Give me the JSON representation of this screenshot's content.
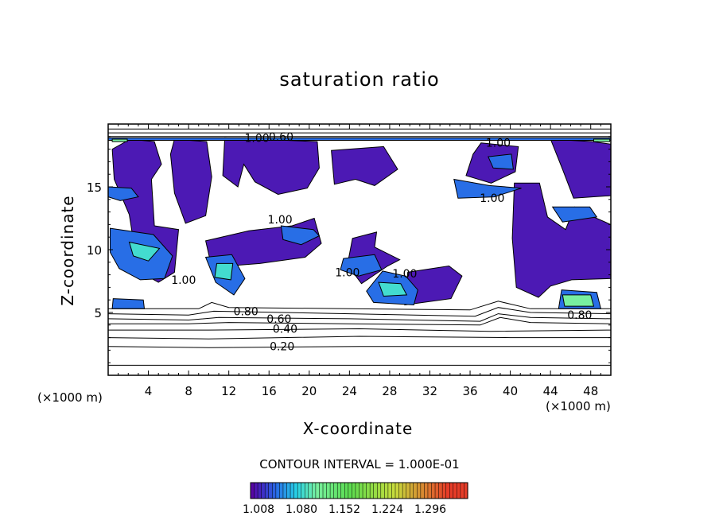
{
  "chart_data": {
    "type": "heatmap",
    "title": "saturation ratio",
    "xlabel": "X-coordinate",
    "ylabel": "Z-coordinate",
    "x_unit": "(×1000 m)",
    "y_unit": "(×1000 m)",
    "xlim": [
      0,
      50
    ],
    "ylim": [
      0,
      20
    ],
    "x_ticks": [
      4,
      8,
      12,
      16,
      20,
      24,
      28,
      32,
      36,
      40,
      44,
      48
    ],
    "y_ticks": [
      5,
      10,
      15
    ],
    "contour_interval_text": "CONTOUR INTERVAL = 1.000E-01",
    "contour_labels": [
      {
        "text": "0.20",
        "x": 17.3,
        "y": 2.3
      },
      {
        "text": "0.40",
        "x": 17.6,
        "y": 3.7
      },
      {
        "text": "0.60",
        "x": 17.0,
        "y": 4.5
      },
      {
        "text": "0.80",
        "x": 13.7,
        "y": 5.1
      },
      {
        "text": "0.80",
        "x": 46.9,
        "y": 4.8
      },
      {
        "text": "0.60",
        "x": 17.2,
        "y": 19.0
      },
      {
        "text": "1.00",
        "x": 14.8,
        "y": 18.9
      },
      {
        "text": "1.00",
        "x": 29.5,
        "y": 8.1
      },
      {
        "text": "1.00",
        "x": 23.8,
        "y": 8.2
      },
      {
        "text": "1.00",
        "x": 17.1,
        "y": 12.4
      },
      {
        "text": "1.00",
        "x": 38.2,
        "y": 14.1
      },
      {
        "text": "1.00",
        "x": 7.5,
        "y": 7.6
      },
      {
        "text": "1.00",
        "x": 38.8,
        "y": 18.5
      }
    ],
    "colorbar": {
      "tick_labels": [
        "1.008",
        "1.080",
        "1.152",
        "1.224",
        "1.296"
      ],
      "range": [
        1.0,
        1.33
      ]
    },
    "regions": [
      {
        "level": 1.01,
        "points": [
          [
            2.2,
            18.8
          ],
          [
            4.6,
            18.6
          ],
          [
            5.3,
            16.8
          ],
          [
            4.3,
            15.6
          ],
          [
            4.6,
            11.9
          ],
          [
            7.0,
            11.6
          ],
          [
            6.6,
            8.2
          ],
          [
            5.0,
            7.4
          ],
          [
            3.0,
            8.3
          ],
          [
            2.1,
            12.8
          ],
          [
            0.6,
            15.6
          ],
          [
            0.4,
            18.0
          ]
        ]
      },
      {
        "level": 1.01,
        "points": [
          [
            6.6,
            18.8
          ],
          [
            9.8,
            18.6
          ],
          [
            10.3,
            15.8
          ],
          [
            9.7,
            12.7
          ],
          [
            7.7,
            12.1
          ],
          [
            6.6,
            14.5
          ],
          [
            6.2,
            17.6
          ]
        ]
      },
      {
        "level": 1.01,
        "points": [
          [
            11.6,
            18.9
          ],
          [
            20.8,
            18.6
          ],
          [
            21.0,
            16.5
          ],
          [
            19.8,
            14.9
          ],
          [
            16.9,
            14.4
          ],
          [
            14.6,
            15.4
          ],
          [
            13.5,
            16.8
          ],
          [
            12.9,
            15.0
          ],
          [
            11.4,
            15.9
          ]
        ]
      },
      {
        "level": 1.01,
        "points": [
          [
            9.7,
            10.7
          ],
          [
            14.0,
            11.5
          ],
          [
            18.3,
            11.9
          ],
          [
            20.5,
            12.5
          ],
          [
            21.2,
            10.5
          ],
          [
            19.6,
            9.4
          ],
          [
            15.1,
            8.9
          ],
          [
            10.3,
            8.6
          ]
        ]
      },
      {
        "level": 1.01,
        "points": [
          [
            22.2,
            17.9
          ],
          [
            27.4,
            18.2
          ],
          [
            28.8,
            16.4
          ],
          [
            26.5,
            15.1
          ],
          [
            24.6,
            15.6
          ],
          [
            22.5,
            15.2
          ]
        ]
      },
      {
        "level": 1.01,
        "points": [
          [
            26.7,
            11.4
          ],
          [
            24.3,
            10.9
          ],
          [
            23.8,
            8.8
          ],
          [
            25.2,
            7.3
          ],
          [
            27.8,
            8.7
          ],
          [
            29.0,
            9.2
          ],
          [
            26.5,
            10.2
          ]
        ]
      },
      {
        "level": 1.01,
        "points": [
          [
            29.8,
            8.2
          ],
          [
            33.9,
            8.7
          ],
          [
            35.2,
            7.9
          ],
          [
            34.1,
            6.1
          ],
          [
            29.5,
            5.6
          ]
        ]
      },
      {
        "level": 1.01,
        "points": [
          [
            37.1,
            18.5
          ],
          [
            40.8,
            18.2
          ],
          [
            40.5,
            16.2
          ],
          [
            38.1,
            15.3
          ],
          [
            35.6,
            15.9
          ],
          [
            36.3,
            17.6
          ]
        ]
      },
      {
        "level": 1.01,
        "points": [
          [
            40.4,
            15.3
          ],
          [
            42.9,
            15.3
          ],
          [
            43.7,
            12.6
          ],
          [
            45.5,
            11.6
          ],
          [
            46.4,
            13.4
          ],
          [
            48.0,
            12.7
          ],
          [
            50.0,
            12.0
          ],
          [
            50.0,
            7.7
          ],
          [
            46.1,
            7.6
          ],
          [
            44.0,
            7.1
          ],
          [
            42.8,
            6.2
          ],
          [
            40.6,
            7.0
          ],
          [
            40.2,
            10.9
          ]
        ]
      },
      {
        "level": 1.01,
        "points": [
          [
            44.0,
            18.8
          ],
          [
            48.2,
            18.6
          ],
          [
            50.0,
            18.4
          ],
          [
            50.0,
            14.3
          ],
          [
            46.3,
            14.1
          ],
          [
            45.2,
            16.4
          ]
        ]
      },
      {
        "level": 1.04,
        "points": [
          [
            0.2,
            11.7
          ],
          [
            4.5,
            11.2
          ],
          [
            6.4,
            9.5
          ],
          [
            5.6,
            7.7
          ],
          [
            3.2,
            7.6
          ],
          [
            1.1,
            8.5
          ],
          [
            0.2,
            9.8
          ]
        ]
      },
      {
        "level": 1.04,
        "points": [
          [
            9.7,
            9.4
          ],
          [
            12.3,
            9.6
          ],
          [
            13.6,
            7.7
          ],
          [
            12.5,
            6.4
          ],
          [
            10.7,
            7.4
          ]
        ]
      },
      {
        "level": 1.04,
        "points": [
          [
            17.2,
            11.9
          ],
          [
            20.4,
            11.6
          ],
          [
            21.0,
            11.1
          ],
          [
            19.2,
            10.4
          ],
          [
            17.4,
            10.8
          ]
        ]
      },
      {
        "level": 1.04,
        "points": [
          [
            23.4,
            9.3
          ],
          [
            26.5,
            9.6
          ],
          [
            27.2,
            8.4
          ],
          [
            24.9,
            7.9
          ],
          [
            23.1,
            8.4
          ]
        ]
      },
      {
        "level": 1.04,
        "points": [
          [
            27.3,
            8.3
          ],
          [
            29.6,
            7.9
          ],
          [
            30.8,
            6.8
          ],
          [
            30.4,
            5.6
          ],
          [
            26.4,
            5.8
          ],
          [
            25.7,
            6.7
          ]
        ]
      },
      {
        "level": 1.04,
        "points": [
          [
            0.5,
            6.1
          ],
          [
            3.5,
            6.0
          ],
          [
            3.6,
            5.3
          ],
          [
            0.4,
            5.3
          ]
        ]
      },
      {
        "level": 1.04,
        "points": [
          [
            45.1,
            6.8
          ],
          [
            48.6,
            6.6
          ],
          [
            49.0,
            5.3
          ],
          [
            44.8,
            5.3
          ]
        ]
      },
      {
        "level": 1.04,
        "points": [
          [
            34.4,
            15.6
          ],
          [
            37.9,
            15.1
          ],
          [
            41.1,
            14.9
          ],
          [
            38.4,
            14.2
          ],
          [
            34.8,
            14.1
          ]
        ]
      },
      {
        "level": 1.04,
        "points": [
          [
            37.8,
            17.4
          ],
          [
            40.1,
            17.6
          ],
          [
            40.3,
            16.4
          ],
          [
            38.3,
            16.5
          ]
        ]
      },
      {
        "level": 1.04,
        "points": [
          [
            0.0,
            15.0
          ],
          [
            2.3,
            14.9
          ],
          [
            3.0,
            14.2
          ],
          [
            1.2,
            13.9
          ],
          [
            0.0,
            14.2
          ]
        ]
      },
      {
        "level": 1.04,
        "points": [
          [
            0.0,
            18.9
          ],
          [
            50.0,
            18.9
          ],
          [
            50.0,
            18.7
          ],
          [
            0.0,
            18.7
          ]
        ]
      },
      {
        "level": 1.04,
        "points": [
          [
            44.2,
            13.4
          ],
          [
            47.9,
            13.4
          ],
          [
            48.6,
            12.6
          ],
          [
            45.2,
            12.2
          ]
        ]
      },
      {
        "level": 1.08,
        "points": [
          [
            2.1,
            10.6
          ],
          [
            5.1,
            10.1
          ],
          [
            4.0,
            9.1
          ],
          [
            2.5,
            9.5
          ]
        ]
      },
      {
        "level": 1.08,
        "points": [
          [
            10.8,
            8.9
          ],
          [
            12.4,
            8.9
          ],
          [
            12.2,
            7.6
          ],
          [
            10.6,
            7.8
          ]
        ]
      },
      {
        "level": 1.08,
        "points": [
          [
            26.9,
            7.4
          ],
          [
            29.1,
            7.3
          ],
          [
            29.7,
            6.4
          ],
          [
            27.4,
            6.3
          ]
        ]
      },
      {
        "level": 1.1,
        "points": [
          [
            45.2,
            6.4
          ],
          [
            48.0,
            6.4
          ],
          [
            48.3,
            5.5
          ],
          [
            45.4,
            5.5
          ]
        ]
      },
      {
        "level": 1.1,
        "points": [
          [
            0.4,
            18.8
          ],
          [
            1.9,
            18.8
          ],
          [
            1.9,
            18.6
          ],
          [
            0.4,
            18.6
          ]
        ]
      },
      {
        "level": 1.1,
        "points": [
          [
            48.3,
            18.8
          ],
          [
            49.9,
            18.8
          ],
          [
            49.9,
            18.6
          ],
          [
            48.3,
            18.6
          ]
        ]
      }
    ],
    "contours": [
      {
        "level": 0.1,
        "points": [
          [
            0,
            0.8
          ],
          [
            10,
            0.8
          ],
          [
            25,
            0.8
          ],
          [
            40,
            0.8
          ],
          [
            50,
            0.8
          ]
        ]
      },
      {
        "level": 0.2,
        "points": [
          [
            0,
            2.3
          ],
          [
            10,
            2.2
          ],
          [
            25,
            2.3
          ],
          [
            40,
            2.3
          ],
          [
            50,
            2.3
          ]
        ]
      },
      {
        "level": 0.3,
        "points": [
          [
            0,
            3.0
          ],
          [
            10,
            2.9
          ],
          [
            25,
            3.1
          ],
          [
            40,
            3.0
          ],
          [
            50,
            3.0
          ]
        ]
      },
      {
        "level": 0.4,
        "points": [
          [
            0,
            3.6
          ],
          [
            10,
            3.6
          ],
          [
            25,
            3.7
          ],
          [
            38,
            3.5
          ],
          [
            50,
            3.6
          ]
        ]
      },
      {
        "level": 0.5,
        "points": [
          [
            0,
            4.1
          ],
          [
            8,
            4.1
          ],
          [
            12,
            4.2
          ],
          [
            24,
            4.1
          ],
          [
            37,
            4.0
          ],
          [
            39,
            4.6
          ],
          [
            42,
            4.2
          ],
          [
            50,
            4.1
          ]
        ]
      },
      {
        "level": 0.6,
        "points": [
          [
            0,
            4.5
          ],
          [
            8,
            4.4
          ],
          [
            11,
            4.6
          ],
          [
            24,
            4.5
          ],
          [
            37,
            4.3
          ],
          [
            38.8,
            4.9
          ],
          [
            42,
            4.6
          ],
          [
            50,
            4.5
          ]
        ]
      },
      {
        "level": 0.7,
        "points": [
          [
            0,
            4.9
          ],
          [
            8,
            4.8
          ],
          [
            10.5,
            5.1
          ],
          [
            24,
            4.9
          ],
          [
            36.5,
            4.7
          ],
          [
            38.8,
            5.4
          ],
          [
            42,
            5.0
          ],
          [
            50,
            4.9
          ]
        ]
      },
      {
        "level": 0.8,
        "points": [
          [
            0,
            5.3
          ],
          [
            9,
            5.3
          ],
          [
            10.3,
            5.8
          ],
          [
            12,
            5.4
          ],
          [
            24,
            5.3
          ],
          [
            36,
            5.2
          ],
          [
            38.8,
            5.9
          ],
          [
            42,
            5.3
          ],
          [
            50,
            5.3
          ]
        ]
      },
      {
        "level": 0.8,
        "points": [
          [
            0,
            19.3
          ],
          [
            50,
            19.3
          ]
        ]
      },
      {
        "level": 0.6,
        "points": [
          [
            0,
            19.6
          ],
          [
            50,
            19.6
          ]
        ]
      },
      {
        "level": 1.0,
        "points": [
          [
            0,
            19.0
          ],
          [
            50,
            19.0
          ]
        ]
      }
    ]
  }
}
